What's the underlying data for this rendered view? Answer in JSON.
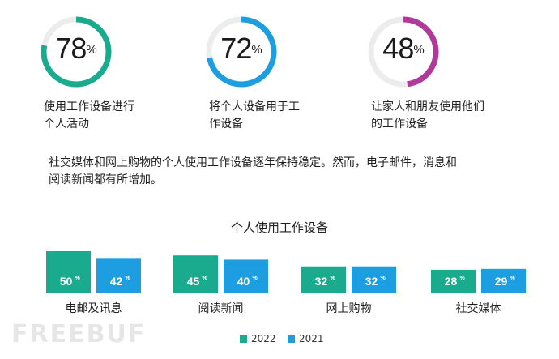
{
  "stats": [
    {
      "value": "78",
      "unit": "%",
      "caption_l1": "使用工作设备进行",
      "caption_l2": "个人活动",
      "fraction": 0.78,
      "color": "#1aab8f"
    },
    {
      "value": "72",
      "unit": "%",
      "caption_l1": "将个人设备用于工",
      "caption_l2": "作设备",
      "fraction": 0.72,
      "color": "#1c9ee0"
    },
    {
      "value": "48",
      "unit": "%",
      "caption_l1": "让家人和朋友使用他们",
      "caption_l2": "的工作设备",
      "fraction": 0.48,
      "color": "#b0399a"
    }
  ],
  "summary_l1": "社交媒体和网上购物的个人使用工作设备逐年保持稳定。然而，电子邮件，消息和",
  "summary_l2": "阅读新闻都有所增加。",
  "chart_data": {
    "type": "bar",
    "title": "个人使用工作设备",
    "categories": [
      "电邮及讯息",
      "阅读新闻",
      "网上购物",
      "社交媒体"
    ],
    "unit": "%",
    "series": [
      {
        "name": "2022",
        "values": [
          50,
          45,
          32,
          28
        ],
        "color": "#1aab8f"
      },
      {
        "name": "2021",
        "values": [
          42,
          40,
          32,
          29
        ],
        "color": "#1c9ee0"
      }
    ],
    "legend_position": "bottom"
  },
  "watermark": "FREEBUF"
}
